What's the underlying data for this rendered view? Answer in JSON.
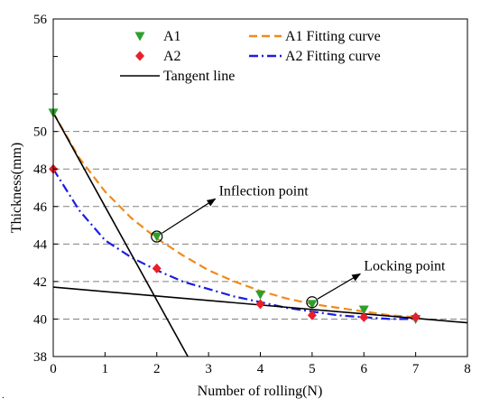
{
  "chart_data": {
    "type": "scatter",
    "title": "",
    "xlabel": "Number of rolling(N)",
    "ylabel": "Thickness(mm)",
    "xlim": [
      0,
      8
    ],
    "ylim": [
      38,
      56
    ],
    "x_ticks": [
      0,
      1,
      2,
      3,
      4,
      5,
      6,
      7,
      8
    ],
    "y_ticks": [
      38,
      40,
      42,
      44,
      46,
      48,
      50,
      52,
      54,
      56
    ],
    "y_tick_labels": [
      "38",
      "40",
      "42",
      "44",
      "46",
      "48",
      "50",
      "",
      "",
      "56"
    ],
    "grid": "horizontal dashed at 40-50",
    "legend_position": "top",
    "series": [
      {
        "name": "A1",
        "kind": "points",
        "marker": "triangle-down",
        "color": "#2ca02c",
        "x": [
          0,
          2,
          4,
          5,
          6,
          7
        ],
        "y": [
          51.0,
          44.4,
          41.3,
          40.8,
          40.5,
          40.0
        ]
      },
      {
        "name": "A2",
        "kind": "points",
        "marker": "diamond",
        "color": "#e8202a",
        "x": [
          0,
          2,
          4,
          5,
          6,
          7
        ],
        "y": [
          48.0,
          42.7,
          40.8,
          40.2,
          40.1,
          40.1
        ]
      },
      {
        "name": "A1 Fitting curve",
        "kind": "line",
        "dash": "dashed",
        "color": "#f08a1c",
        "x": [
          0,
          0.5,
          1,
          1.5,
          2,
          2.5,
          3,
          3.5,
          4,
          4.5,
          5,
          5.5,
          6,
          6.5,
          7
        ],
        "y": [
          51.0,
          48.6,
          46.8,
          45.4,
          44.3,
          43.4,
          42.6,
          42.0,
          41.5,
          41.1,
          40.8,
          40.6,
          40.4,
          40.2,
          40.1
        ]
      },
      {
        "name": "A2 Fitting curve",
        "kind": "line",
        "dash": "dashdot",
        "color": "#1d1de0",
        "x": [
          0,
          0.5,
          1,
          1.5,
          2,
          2.5,
          3,
          3.5,
          4,
          4.5,
          5,
          5.5,
          6,
          6.5,
          7
        ],
        "y": [
          48.0,
          45.8,
          44.2,
          43.3,
          42.6,
          42.0,
          41.6,
          41.2,
          40.9,
          40.6,
          40.4,
          40.2,
          40.1,
          40.0,
          40.0
        ]
      },
      {
        "name": "Tangent line",
        "kind": "line",
        "dash": "solid",
        "color": "#000000",
        "segments": [
          {
            "x": [
              0,
              2.6
            ],
            "y": [
              51.0,
              38.0
            ]
          },
          {
            "x": [
              0,
              8
            ],
            "y": [
              41.7,
              39.8
            ]
          }
        ]
      }
    ],
    "annotations": [
      {
        "text": "Inflection point",
        "point": [
          2,
          44.4
        ],
        "label_at": [
          3.2,
          46.6
        ]
      },
      {
        "text": "Locking point",
        "point": [
          5,
          40.9
        ],
        "label_at": [
          6.0,
          42.6
        ]
      }
    ]
  },
  "stray_mark": "."
}
